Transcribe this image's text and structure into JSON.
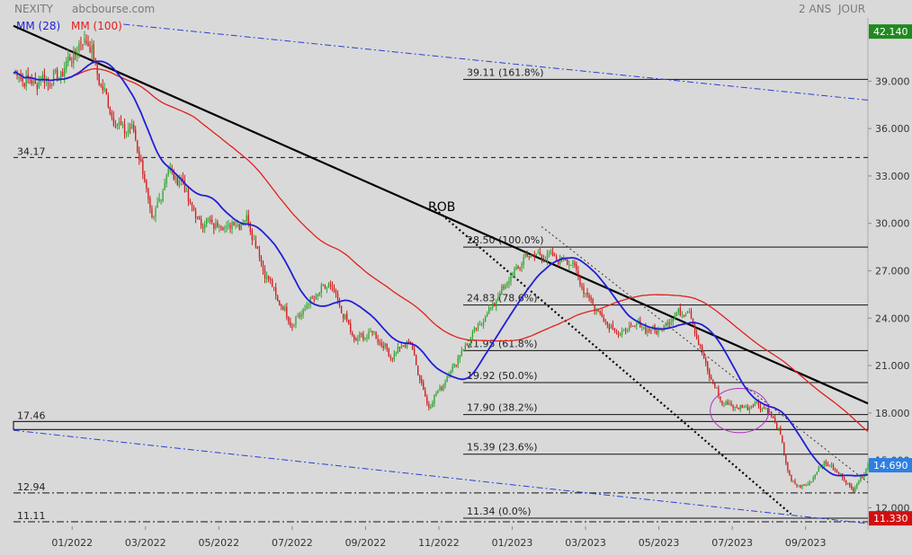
{
  "header": {
    "symbol": "NEXITY",
    "source": "abcbourse.com",
    "range": "2 ANS",
    "interval": "JOUR",
    "legend": [
      {
        "label": "MM (28)",
        "color": "#1f1fd6"
      },
      {
        "label": "MM (100)",
        "color": "#e0201c"
      }
    ]
  },
  "colors": {
    "background": "#d9d9d9",
    "up_candle": "#2ea52e",
    "down_candle": "#d01d1d",
    "ma_short": "#1f1fd6",
    "ma_long": "#e0201c",
    "trendline": "#000000",
    "channel": "#2a3fd6",
    "ellipse": "#b030c0",
    "tag_high": "#1f8a1f",
    "tag_last": "#2f7fe0",
    "tag_low": "#d01010"
  },
  "chart_data": {
    "type": "candlestick",
    "x_ticks": [
      "01/2022",
      "03/2022",
      "05/2022",
      "07/2022",
      "09/2022",
      "11/2022",
      "01/2023",
      "03/2023",
      "05/2023",
      "07/2023",
      "09/2023"
    ],
    "y_ticks": [
      "12.000",
      "15.000",
      "18.000",
      "21.000",
      "24.000",
      "27.000",
      "30.000",
      "33.000",
      "36.000",
      "39.000"
    ],
    "ylim": [
      10.6,
      43.0
    ],
    "x_range": [
      0,
      23.3
    ],
    "price_tags": [
      {
        "value": 42.14,
        "label": "42.140",
        "kind": "high"
      },
      {
        "value": 14.69,
        "label": "14.690",
        "kind": "last"
      },
      {
        "value": 11.33,
        "label": "11.330",
        "kind": "low"
      }
    ],
    "fibonacci": [
      {
        "value": 39.11,
        "label": "39.11  (161.8%)"
      },
      {
        "value": 28.5,
        "label": "28.50  (100.0%)"
      },
      {
        "value": 24.83,
        "label": "24.83  (78.6%)"
      },
      {
        "value": 21.95,
        "label": "21.95  (61.8%)"
      },
      {
        "value": 19.92,
        "label": "19.92  (50.0%)"
      },
      {
        "value": 17.9,
        "label": "17.90  (38.2%)"
      },
      {
        "value": 15.39,
        "label": "15.39  (23.6%)"
      },
      {
        "value": 11.34,
        "label": "11.34  (0.0%)"
      }
    ],
    "horizontal_levels": [
      {
        "value": 34.17,
        "label": "34.17"
      },
      {
        "value": 17.46,
        "label": "17.46"
      },
      {
        "value": 12.94,
        "label": "12.94"
      },
      {
        "value": 11.11,
        "label": "11.11"
      }
    ],
    "annotation": "ROB",
    "anchors": [
      {
        "t": 0,
        "p": 39.5
      },
      {
        "t": 0.5,
        "p": 38.9
      },
      {
        "t": 1.2,
        "p": 39.2
      },
      {
        "t": 1.6,
        "p": 40.6
      },
      {
        "t": 2.0,
        "p": 41.8
      },
      {
        "t": 2.4,
        "p": 38.7
      },
      {
        "t": 2.8,
        "p": 36.2
      },
      {
        "t": 3.3,
        "p": 35.8
      },
      {
        "t": 3.8,
        "p": 30.0
      },
      {
        "t": 4.2,
        "p": 33.4
      },
      {
        "t": 4.6,
        "p": 32.6
      },
      {
        "t": 5.0,
        "p": 30.2
      },
      {
        "t": 5.8,
        "p": 29.8
      },
      {
        "t": 6.4,
        "p": 30.2
      },
      {
        "t": 6.8,
        "p": 27.2
      },
      {
        "t": 7.2,
        "p": 25.2
      },
      {
        "t": 7.6,
        "p": 23.6
      },
      {
        "t": 8.0,
        "p": 24.8
      },
      {
        "t": 8.6,
        "p": 26.2
      },
      {
        "t": 9.0,
        "p": 24.2
      },
      {
        "t": 9.3,
        "p": 22.6
      },
      {
        "t": 9.8,
        "p": 23.1
      },
      {
        "t": 10.3,
        "p": 21.6
      },
      {
        "t": 10.8,
        "p": 22.6
      },
      {
        "t": 11.3,
        "p": 18.4
      },
      {
        "t": 11.6,
        "p": 19.4
      },
      {
        "t": 12.2,
        "p": 21.8
      },
      {
        "t": 13.0,
        "p": 24.6
      },
      {
        "t": 13.5,
        "p": 26.4
      },
      {
        "t": 14.0,
        "p": 28.0
      },
      {
        "t": 14.6,
        "p": 27.9
      },
      {
        "t": 15.2,
        "p": 27.6
      },
      {
        "t": 15.6,
        "p": 25.6
      },
      {
        "t": 16.0,
        "p": 24.2
      },
      {
        "t": 16.5,
        "p": 23.0
      },
      {
        "t": 17.0,
        "p": 23.6
      },
      {
        "t": 17.5,
        "p": 23.1
      },
      {
        "t": 18.0,
        "p": 24.1
      },
      {
        "t": 18.4,
        "p": 24.6
      },
      {
        "t": 18.9,
        "p": 20.8
      },
      {
        "t": 19.3,
        "p": 18.7
      },
      {
        "t": 19.8,
        "p": 18.3
      },
      {
        "t": 20.3,
        "p": 18.6
      },
      {
        "t": 20.7,
        "p": 17.8
      },
      {
        "t": 20.9,
        "p": 16.6
      },
      {
        "t": 21.2,
        "p": 13.6
      },
      {
        "t": 21.6,
        "p": 13.3
      },
      {
        "t": 22.1,
        "p": 14.9
      },
      {
        "t": 22.5,
        "p": 14.2
      },
      {
        "t": 22.9,
        "p": 13.1
      },
      {
        "t": 23.3,
        "p": 14.69
      }
    ],
    "lines": {
      "main_trend": [
        [
          0,
          42.5
        ],
        [
          23.3,
          18.6
        ]
      ],
      "upper_channel": [
        [
          3.0,
          42.6
        ],
        [
          23.3,
          37.8
        ]
      ],
      "lower_channel": [
        [
          0,
          16.9
        ],
        [
          23.3,
          11.0
        ]
      ],
      "rob_dotted": [
        [
          11.5,
          30.9
        ],
        [
          21.2,
          11.6
        ]
      ],
      "parallel_dotted": [
        [
          14.4,
          29.8
        ],
        [
          23.3,
          13.6
        ]
      ]
    },
    "ellipse": {
      "t": 19.8,
      "p": 18.15,
      "rt": 0.8,
      "rp": 1.4
    }
  }
}
